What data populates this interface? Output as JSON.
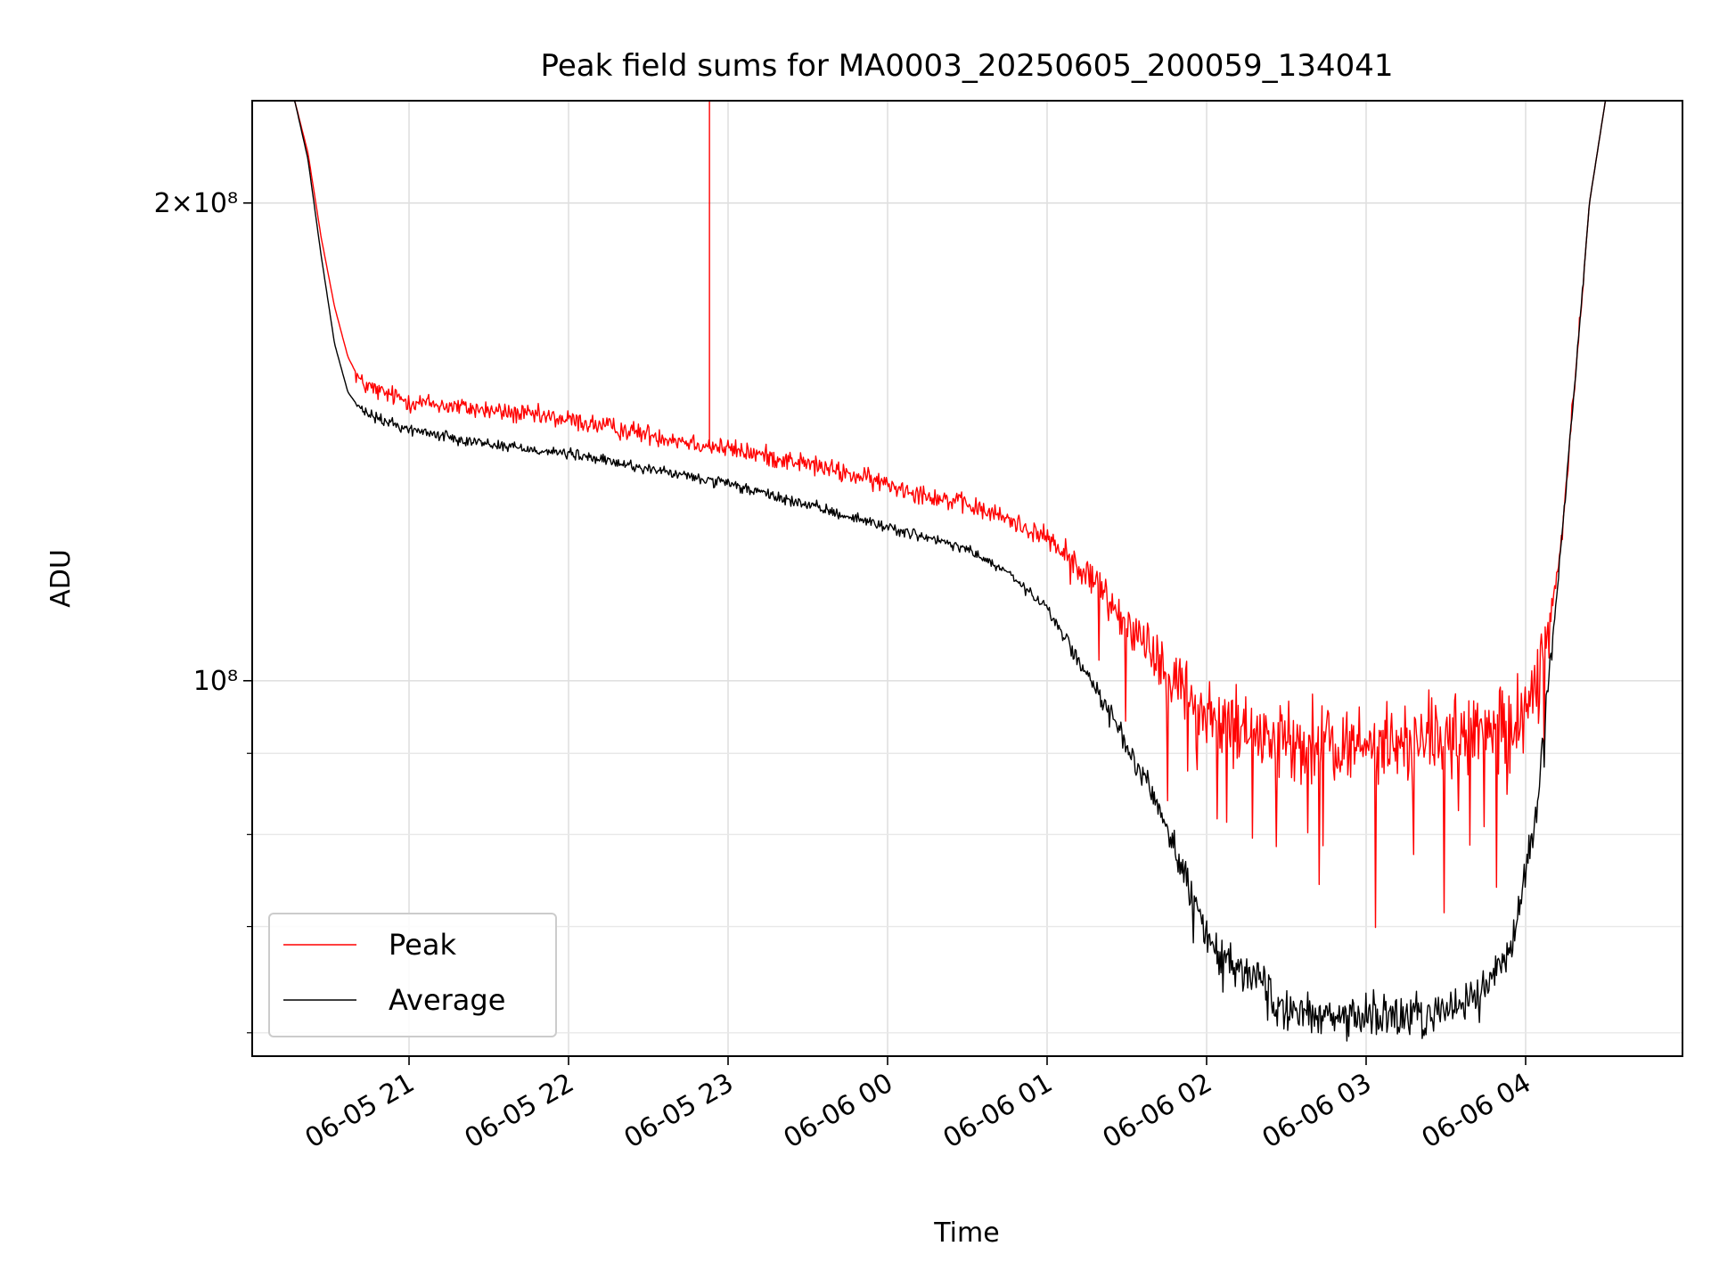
{
  "chart_data": {
    "type": "line",
    "title": "Peak field sums for MA0003_20250605_200059_134041",
    "xlabel": "Time",
    "ylabel": "ADU",
    "y_scale": "log",
    "ylim": [
      58000000,
      232000000
    ],
    "xlim": [
      "2025-06-05 20:01",
      "2025-06-06 04:59"
    ],
    "x_ticks": [
      {
        "label": "06-05 21",
        "value": "2025-06-05 21:00"
      },
      {
        "label": "06-05 22",
        "value": "2025-06-05 22:00"
      },
      {
        "label": "06-05 23",
        "value": "2025-06-05 23:00"
      },
      {
        "label": "06-06 00",
        "value": "2025-06-06 00:00"
      },
      {
        "label": "06-06 01",
        "value": "2025-06-06 01:00"
      },
      {
        "label": "06-06 02",
        "value": "2025-06-06 02:00"
      },
      {
        "label": "06-06 03",
        "value": "2025-06-06 03:00"
      },
      {
        "label": "06-06 04",
        "value": "2025-06-06 04:00"
      }
    ],
    "y_major_ticks": [
      {
        "label": "10⁸",
        "value": 100000000
      },
      {
        "label": "2×10⁸",
        "value": 200000000
      }
    ],
    "y_minor_ticks": [
      60000000,
      70000000,
      80000000,
      90000000
    ],
    "grid": true,
    "legend_position": "lower-left",
    "series": [
      {
        "name": "Peak",
        "color": "#ff0000",
        "x": [
          "2025-06-05 20:01",
          "2025-06-05 20:17",
          "2025-06-05 20:22",
          "2025-06-05 20:27",
          "2025-06-05 20:32",
          "2025-06-05 20:37",
          "2025-06-05 20:42",
          "2025-06-05 20:49",
          "2025-06-05 20:55",
          "2025-06-05 21:00",
          "2025-06-05 21:30",
          "2025-06-05 22:00",
          "2025-06-05 22:30",
          "2025-06-05 23:00",
          "2025-06-05 23:30",
          "2025-06-06 00:00",
          "2025-06-06 00:30",
          "2025-06-06 00:45",
          "2025-06-06 01:00",
          "2025-06-06 01:15",
          "2025-06-06 01:30",
          "2025-06-06 01:45",
          "2025-06-06 02:00",
          "2025-06-06 02:30",
          "2025-06-06 03:00",
          "2025-06-06 03:30",
          "2025-06-06 03:45",
          "2025-06-06 03:55",
          "2025-06-06 04:05",
          "2025-06-06 04:13",
          "2025-06-06 04:20",
          "2025-06-06 04:24",
          "2025-06-06 04:30",
          "2025-06-06 04:59"
        ],
        "y": [
          232000000,
          232000000,
          215000000,
          190000000,
          172000000,
          160000000,
          154000000,
          152000000,
          151000000,
          150000000,
          148000000,
          146000000,
          143000000,
          140000000,
          137000000,
          133000000,
          129000000,
          126500000,
          123000000,
          117000000,
          109000000,
          102000000,
          95000000,
          91000000,
          91000000,
          92000000,
          92500000,
          93000000,
          100000000,
          120000000,
          165000000,
          200000000,
          232000000,
          232000000
        ]
      },
      {
        "name": "Average",
        "color": "#000000",
        "x": [
          "2025-06-05 20:01",
          "2025-06-05 20:17",
          "2025-06-05 20:22",
          "2025-06-05 20:27",
          "2025-06-05 20:32",
          "2025-06-05 20:37",
          "2025-06-05 20:42",
          "2025-06-05 20:49",
          "2025-06-05 20:55",
          "2025-06-05 21:00",
          "2025-06-05 21:30",
          "2025-06-05 22:00",
          "2025-06-05 22:30",
          "2025-06-05 23:00",
          "2025-06-05 23:30",
          "2025-06-06 00:00",
          "2025-06-06 00:30",
          "2025-06-06 00:45",
          "2025-06-06 01:00",
          "2025-06-06 01:15",
          "2025-06-06 01:30",
          "2025-06-06 01:45",
          "2025-06-06 02:00",
          "2025-06-06 02:30",
          "2025-06-06 03:00",
          "2025-06-06 03:30",
          "2025-06-06 03:45",
          "2025-06-06 03:55",
          "2025-06-06 04:05",
          "2025-06-06 04:13",
          "2025-06-06 04:20",
          "2025-06-06 04:24",
          "2025-06-06 04:30",
          "2025-06-06 04:59"
        ],
        "y": [
          232000000,
          232000000,
          213000000,
          185000000,
          163000000,
          152000000,
          148000000,
          146000000,
          145000000,
          144000000,
          141000000,
          139000000,
          136000000,
          133000000,
          129000000,
          125000000,
          121000000,
          117000000,
          111000000,
          101000000,
          91000000,
          81000000,
          69000000,
          62000000,
          61500000,
          62000000,
          64000000,
          68000000,
          85000000,
          120000000,
          165000000,
          200000000,
          232000000,
          232000000
        ]
      }
    ]
  }
}
